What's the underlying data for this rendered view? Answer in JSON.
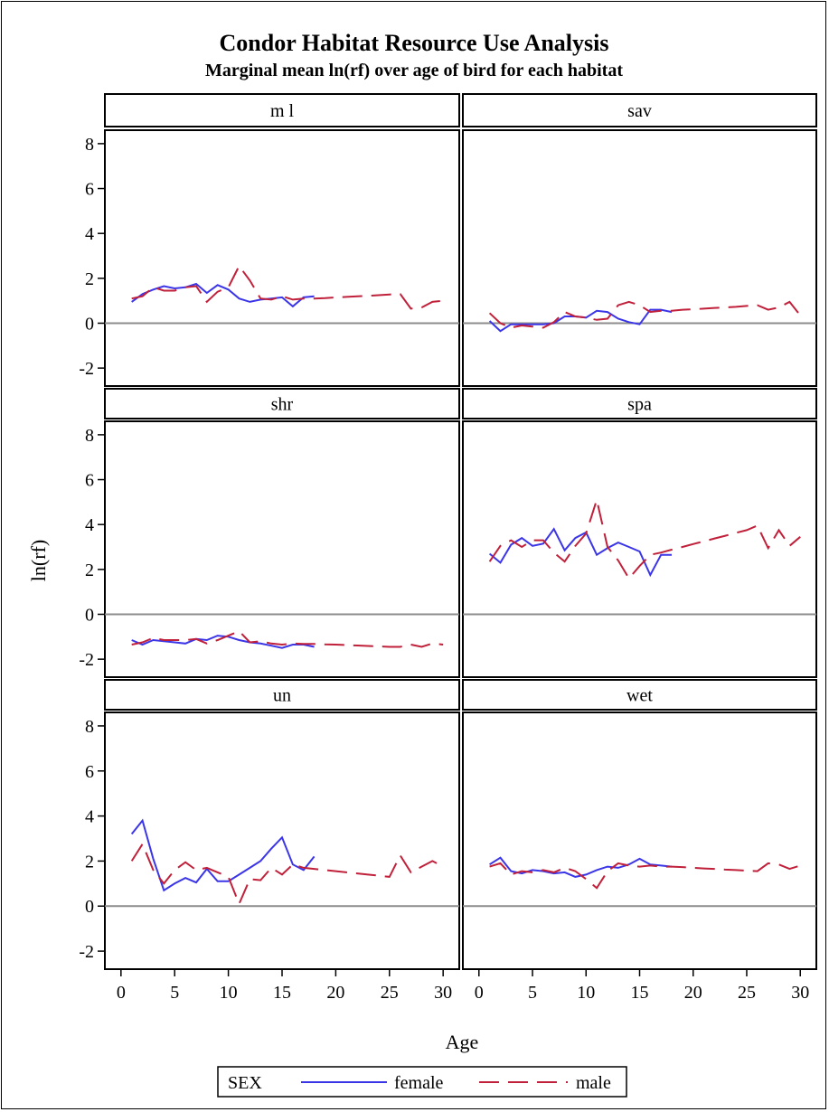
{
  "chart_data": {
    "type": "line",
    "title": "Condor Habitat Resource Use Analysis",
    "subtitle": "Marginal mean ln(rf) over age of bird for each habitat",
    "xlabel": "Age",
    "ylabel": "ln(rf)",
    "xlim": [
      -1.5,
      31.5
    ],
    "ylim": [
      -2.8,
      8.6
    ],
    "xticks": [
      0,
      5,
      10,
      15,
      20,
      25,
      30
    ],
    "yticks": [
      -2,
      0,
      2,
      4,
      6,
      8
    ],
    "reference_line_y": 0,
    "legend": {
      "title": "SEX",
      "position": "bottom",
      "entries": [
        {
          "name": "female",
          "color": "#3b35e8",
          "style": "solid"
        },
        {
          "name": "male",
          "color": "#c0203a",
          "style": "dashed"
        }
      ]
    },
    "panels": [
      {
        "label": "m  l",
        "series": [
          {
            "name": "female",
            "x": [
              1,
              2,
              3,
              4,
              5,
              6,
              7,
              8,
              9,
              10,
              11,
              12,
              13,
              14,
              15,
              16,
              17,
              18
            ],
            "y": [
              0.95,
              1.3,
              1.5,
              1.65,
              1.55,
              1.6,
              1.75,
              1.35,
              1.7,
              1.5,
              1.1,
              0.95,
              1.05,
              1.1,
              1.15,
              0.75,
              1.15,
              1.2
            ]
          },
          {
            "name": "male",
            "x": [
              1,
              2,
              3,
              4,
              5,
              6,
              7,
              8,
              9,
              10,
              11,
              12,
              13,
              14,
              15,
              16,
              17,
              18,
              19,
              20,
              21,
              22,
              23,
              24,
              25,
              26,
              27,
              28,
              29,
              30
            ],
            "y": [
              1.1,
              1.2,
              1.6,
              1.45,
              1.45,
              1.6,
              1.65,
              0.95,
              1.4,
              1.6,
              2.55,
              1.9,
              1.1,
              1.05,
              1.2,
              1.05,
              1.1,
              1.1,
              1.12,
              1.15,
              1.17,
              1.2,
              1.22,
              1.25,
              1.28,
              1.3,
              0.65,
              0.7,
              0.95,
              1.0
            ]
          }
        ]
      },
      {
        "label": "sav",
        "series": [
          {
            "name": "female",
            "x": [
              1,
              2,
              3,
              4,
              5,
              6,
              7,
              8,
              9,
              10,
              11,
              12,
              13,
              14,
              15,
              16,
              17,
              18
            ],
            "y": [
              0.1,
              -0.35,
              -0.05,
              -0.05,
              -0.05,
              -0.05,
              0.0,
              0.3,
              0.3,
              0.25,
              0.55,
              0.5,
              0.2,
              0.05,
              -0.05,
              0.6,
              0.6,
              0.5
            ]
          },
          {
            "name": "male",
            "x": [
              1,
              2,
              3,
              4,
              5,
              6,
              7,
              8,
              9,
              10,
              11,
              12,
              13,
              14,
              15,
              16,
              17,
              18,
              19,
              20,
              21,
              22,
              23,
              24,
              25,
              26,
              27,
              28,
              29,
              30
            ],
            "y": [
              0.45,
              0.0,
              -0.2,
              -0.1,
              -0.15,
              -0.2,
              0.05,
              0.5,
              0.3,
              0.25,
              0.15,
              0.2,
              0.8,
              0.95,
              0.8,
              0.5,
              0.55,
              0.55,
              0.6,
              0.62,
              0.65,
              0.68,
              0.7,
              0.73,
              0.77,
              0.8,
              0.6,
              0.7,
              0.95,
              0.35
            ]
          }
        ]
      },
      {
        "label": "shr",
        "series": [
          {
            "name": "female",
            "x": [
              1,
              2,
              3,
              4,
              5,
              6,
              7,
              8,
              9,
              10,
              11,
              12,
              13,
              14,
              15,
              16,
              17,
              18
            ],
            "y": [
              -1.15,
              -1.35,
              -1.15,
              -1.2,
              -1.25,
              -1.3,
              -1.1,
              -1.15,
              -0.95,
              -1.0,
              -1.15,
              -1.25,
              -1.3,
              -1.4,
              -1.5,
              -1.35,
              -1.35,
              -1.45
            ]
          },
          {
            "name": "male",
            "x": [
              1,
              2,
              3,
              4,
              5,
              6,
              7,
              8,
              9,
              10,
              11,
              12,
              13,
              14,
              15,
              16,
              17,
              18,
              19,
              20,
              21,
              22,
              23,
              24,
              25,
              26,
              27,
              28,
              29,
              30
            ],
            "y": [
              -1.35,
              -1.25,
              -1.05,
              -1.15,
              -1.15,
              -1.15,
              -1.1,
              -1.3,
              -1.15,
              -0.95,
              -0.75,
              -1.25,
              -1.2,
              -1.3,
              -1.35,
              -1.3,
              -1.32,
              -1.32,
              -1.34,
              -1.35,
              -1.37,
              -1.39,
              -1.41,
              -1.43,
              -1.45,
              -1.45,
              -1.35,
              -1.45,
              -1.3,
              -1.35
            ]
          }
        ]
      },
      {
        "label": "spa",
        "series": [
          {
            "name": "female",
            "x": [
              1,
              2,
              3,
              4,
              5,
              6,
              7,
              8,
              9,
              10,
              11,
              12,
              13,
              14,
              15,
              16,
              17,
              18
            ],
            "y": [
              2.7,
              2.3,
              3.1,
              3.4,
              3.05,
              3.15,
              3.8,
              2.85,
              3.4,
              3.65,
              2.65,
              2.95,
              3.2,
              3.0,
              2.8,
              1.75,
              2.65,
              2.65
            ]
          },
          {
            "name": "male",
            "x": [
              1,
              2,
              3,
              4,
              5,
              6,
              7,
              8,
              9,
              10,
              11,
              12,
              13,
              14,
              15,
              16,
              17,
              18,
              19,
              20,
              21,
              22,
              23,
              24,
              25,
              26,
              27,
              28,
              29,
              30
            ],
            "y": [
              2.35,
              3.05,
              3.3,
              3.0,
              3.3,
              3.3,
              2.75,
              2.35,
              3.05,
              3.6,
              5.1,
              3.0,
              2.4,
              1.6,
              2.15,
              2.65,
              2.75,
              2.88,
              3.0,
              3.13,
              3.25,
              3.38,
              3.5,
              3.63,
              3.75,
              3.95,
              2.95,
              3.75,
              3.05,
              3.45
            ]
          }
        ]
      },
      {
        "label": "un",
        "series": [
          {
            "name": "female",
            "x": [
              1,
              2,
              3,
              4,
              5,
              6,
              7,
              8,
              9,
              10,
              11,
              12,
              13,
              14,
              15,
              16,
              17,
              18
            ],
            "y": [
              3.2,
              3.8,
              2.1,
              0.7,
              1.0,
              1.25,
              1.05,
              1.65,
              1.1,
              1.1,
              1.4,
              1.7,
              2.0,
              2.55,
              3.05,
              1.85,
              1.6,
              2.2
            ]
          },
          {
            "name": "male",
            "x": [
              1,
              2,
              3,
              4,
              5,
              6,
              7,
              8,
              9,
              10,
              11,
              12,
              13,
              14,
              15,
              16,
              17,
              18,
              19,
              20,
              21,
              22,
              23,
              24,
              25,
              26,
              27,
              28,
              29,
              30
            ],
            "y": [
              2.0,
              2.75,
              1.6,
              1.0,
              1.6,
              1.95,
              1.6,
              1.7,
              1.5,
              1.3,
              0.1,
              1.2,
              1.15,
              1.7,
              1.4,
              1.85,
              1.7,
              1.65,
              1.6,
              1.55,
              1.5,
              1.45,
              1.4,
              1.35,
              1.3,
              2.25,
              1.5,
              1.75,
              2.0,
              1.75
            ]
          }
        ]
      },
      {
        "label": "wet",
        "series": [
          {
            "name": "female",
            "x": [
              1,
              2,
              3,
              4,
              5,
              6,
              7,
              8,
              9,
              10,
              11,
              12,
              13,
              14,
              15,
              16,
              17,
              18
            ],
            "y": [
              1.85,
              2.15,
              1.55,
              1.45,
              1.6,
              1.55,
              1.45,
              1.5,
              1.3,
              1.4,
              1.6,
              1.75,
              1.7,
              1.85,
              2.1,
              1.85,
              1.8,
              1.75
            ]
          },
          {
            "name": "male",
            "x": [
              1,
              2,
              3,
              4,
              5,
              6,
              7,
              8,
              9,
              10,
              11,
              12,
              13,
              14,
              15,
              16,
              17,
              18,
              19,
              20,
              21,
              22,
              23,
              24,
              25,
              26,
              27,
              28,
              29,
              30
            ],
            "y": [
              1.75,
              1.9,
              1.4,
              1.55,
              1.5,
              1.6,
              1.5,
              1.7,
              1.55,
              1.2,
              0.8,
              1.55,
              1.9,
              1.8,
              1.75,
              1.8,
              1.75,
              1.75,
              1.73,
              1.7,
              1.67,
              1.65,
              1.62,
              1.6,
              1.57,
              1.55,
              1.9,
              1.85,
              1.65,
              1.8
            ]
          }
        ]
      }
    ]
  }
}
